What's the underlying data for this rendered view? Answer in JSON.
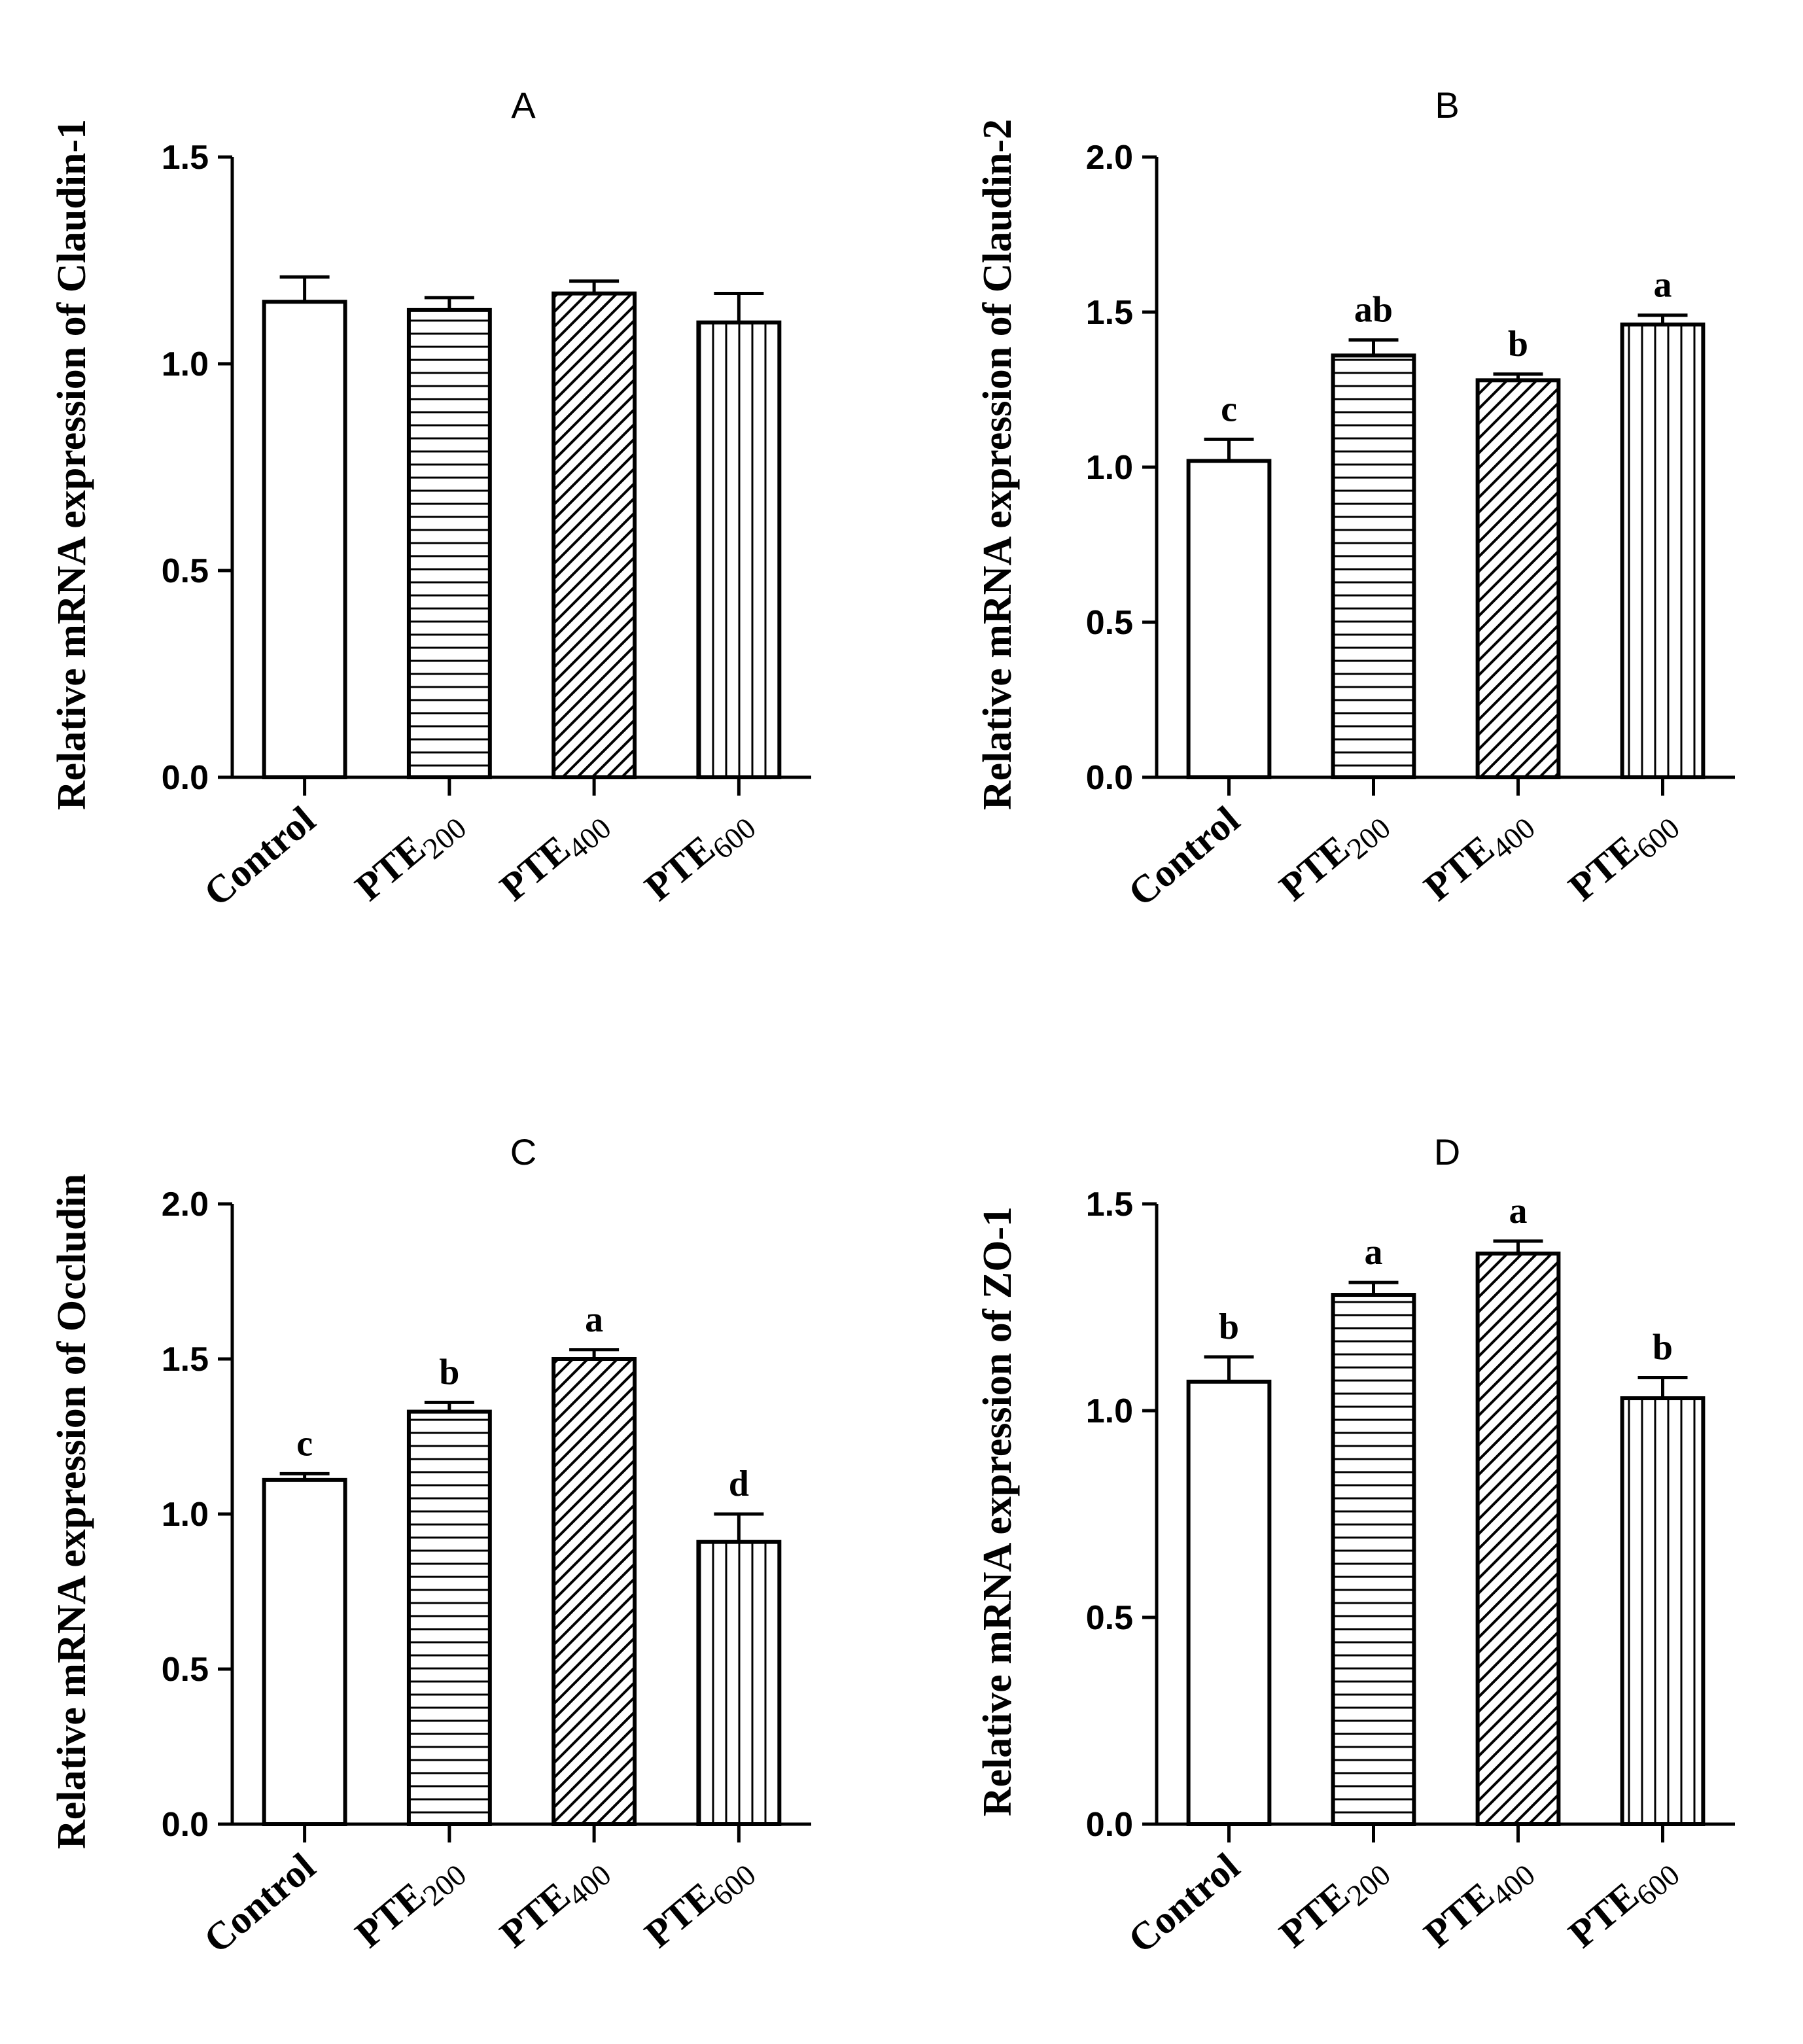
{
  "chart_data": [
    {
      "type": "bar",
      "title": "A",
      "ylabel": "Relative mRNA expression of Claudin-1",
      "ylim": [
        0,
        1.5
      ],
      "yticks": [
        "0.0",
        "0.5",
        "1.0",
        "1.5"
      ],
      "categories": [
        {
          "main": "Control",
          "sub": ""
        },
        {
          "main": "PTE",
          "sub": "200"
        },
        {
          "main": "PTE",
          "sub": "400"
        },
        {
          "main": "PTE",
          "sub": "600"
        }
      ],
      "values": [
        1.15,
        1.13,
        1.17,
        1.1
      ],
      "errors": [
        0.06,
        0.03,
        0.03,
        0.07
      ],
      "significance": [
        "",
        "",
        "",
        ""
      ],
      "patterns": [
        "none",
        "horizontal",
        "diagonal",
        "vertical"
      ]
    },
    {
      "type": "bar",
      "title": "B",
      "ylabel": "Relative mRNA expression of Claudin-2",
      "ylim": [
        0,
        2.0
      ],
      "yticks": [
        "0.0",
        "0.5",
        "1.0",
        "1.5",
        "2.0"
      ],
      "categories": [
        {
          "main": "Control",
          "sub": ""
        },
        {
          "main": "PTE",
          "sub": "200"
        },
        {
          "main": "PTE",
          "sub": "400"
        },
        {
          "main": "PTE",
          "sub": "600"
        }
      ],
      "values": [
        1.02,
        1.36,
        1.28,
        1.46
      ],
      "errors": [
        0.07,
        0.05,
        0.02,
        0.03
      ],
      "significance": [
        "c",
        "ab",
        "b",
        "a"
      ],
      "patterns": [
        "none",
        "horizontal",
        "diagonal",
        "vertical"
      ]
    },
    {
      "type": "bar",
      "title": "C",
      "ylabel": "Relative mRNA expression of Occludin",
      "ylim": [
        0,
        2.0
      ],
      "yticks": [
        "0.0",
        "0.5",
        "1.0",
        "1.5",
        "2.0"
      ],
      "categories": [
        {
          "main": "Control",
          "sub": ""
        },
        {
          "main": "PTE",
          "sub": "200"
        },
        {
          "main": "PTE",
          "sub": "400"
        },
        {
          "main": "PTE",
          "sub": "600"
        }
      ],
      "values": [
        1.11,
        1.33,
        1.5,
        0.91
      ],
      "errors": [
        0.02,
        0.03,
        0.03,
        0.09
      ],
      "significance": [
        "c",
        "b",
        "a",
        "d"
      ],
      "patterns": [
        "none",
        "horizontal",
        "diagonal",
        "vertical"
      ]
    },
    {
      "type": "bar",
      "title": "D",
      "ylabel": "Relative mRNA expression of ZO-1",
      "ylim": [
        0,
        1.5
      ],
      "yticks": [
        "0.0",
        "0.5",
        "1.0",
        "1.5"
      ],
      "categories": [
        {
          "main": "Control",
          "sub": ""
        },
        {
          "main": "PTE",
          "sub": "200"
        },
        {
          "main": "PTE",
          "sub": "400"
        },
        {
          "main": "PTE",
          "sub": "600"
        }
      ],
      "values": [
        1.07,
        1.28,
        1.38,
        1.03
      ],
      "errors": [
        0.06,
        0.03,
        0.03,
        0.05
      ],
      "significance": [
        "b",
        "a",
        "a",
        "b"
      ],
      "patterns": [
        "none",
        "horizontal",
        "diagonal",
        "vertical"
      ]
    }
  ]
}
